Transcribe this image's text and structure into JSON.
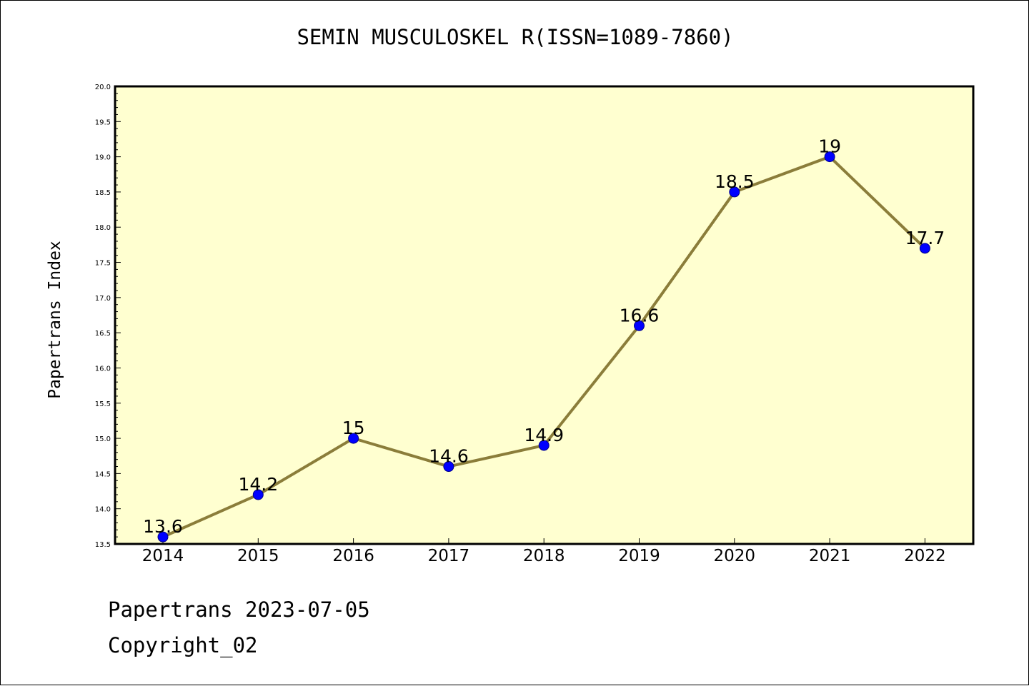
{
  "chart_data": {
    "type": "line",
    "title": "SEMIN MUSCULOSKEL R(ISSN=1089-7860)",
    "xlabel": "",
    "ylabel": "Papertrans Index",
    "categories": [
      "2014",
      "2015",
      "2016",
      "2017",
      "2018",
      "2019",
      "2020",
      "2021",
      "2022"
    ],
    "series": [
      {
        "values": [
          13.6,
          14.2,
          15.0,
          14.6,
          14.9,
          16.6,
          18.5,
          19.0,
          17.7
        ],
        "data_labels": [
          "13.6",
          "14.2",
          "15",
          "14.6",
          "14.9",
          "16.6",
          "18.5",
          "19",
          "17.7"
        ]
      }
    ],
    "ylim": [
      13.5,
      20.0
    ],
    "yticks": [
      "13.5",
      "14.0",
      "14.5",
      "15.0",
      "15.5",
      "16.0",
      "16.5",
      "17.0",
      "17.5",
      "18.0",
      "18.5",
      "19.0",
      "19.5",
      "20.0"
    ],
    "grid": false,
    "colors": {
      "plot_background": "#ffffd0",
      "line": "#8b7d3a",
      "marker": "#0000ff"
    }
  },
  "footer": {
    "line1": "Papertrans 2023-07-05",
    "line2": "Copyright_02"
  }
}
